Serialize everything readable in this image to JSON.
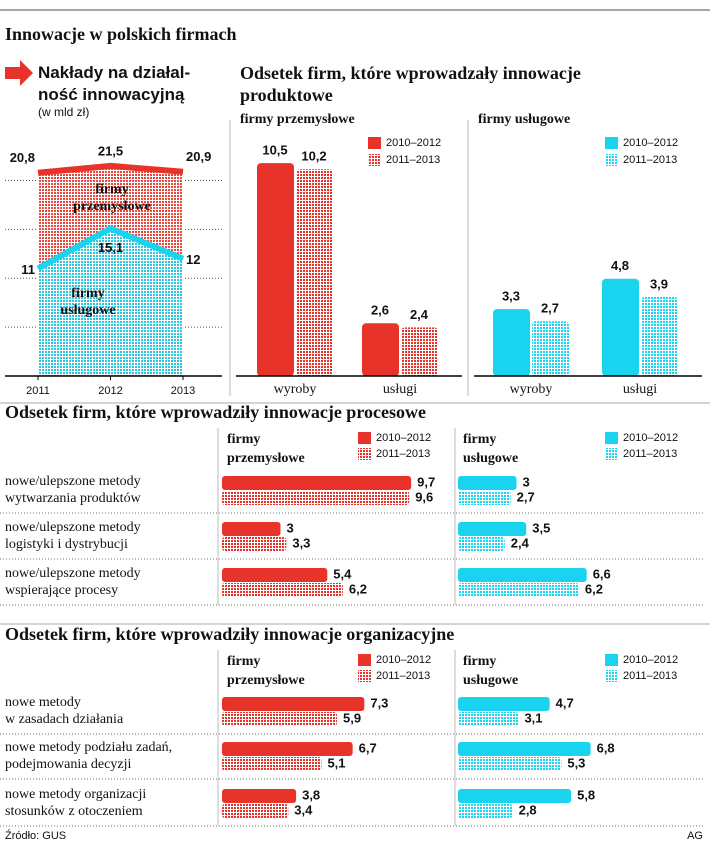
{
  "title": "Innowacje w polskich firmach",
  "source": "Źródło: GUS",
  "credit": "AG",
  "chart_data": [
    {
      "type": "area-line",
      "title": "Nakłady na działal-\nność innowacyjną",
      "subtitle": "(w mld zł)",
      "categories": [
        "2011",
        "2012",
        "2013"
      ],
      "series": [
        {
          "name": "firmy\nprzemysłowe",
          "color": "#e8332a",
          "values": [
            20.8,
            21.5,
            20.9
          ],
          "value_labels": [
            "20,8",
            "21,5",
            "20,9"
          ]
        },
        {
          "name": "firmy\nusługowe",
          "color": "#19d3ef",
          "values": [
            11,
            15.1,
            12
          ],
          "value_labels": [
            "11",
            "15,1",
            "12"
          ]
        }
      ],
      "ylim": [
        0,
        22
      ],
      "yticks": [
        0,
        5,
        10,
        15,
        20
      ],
      "grid": true
    },
    {
      "type": "bar",
      "title": "Odsetek firm, które wprowadzały innowacje\nproduktowe",
      "ylim": [
        0,
        11
      ],
      "panels": [
        {
          "title": "firmy przemysłowe",
          "categories": [
            "wyroby",
            "usługi"
          ],
          "series": [
            {
              "name": "2010–2012",
              "color": "#e8332a",
              "fill": "solid",
              "values": [
                10.5,
                2.6
              ],
              "value_labels": [
                "10,5",
                "2,6"
              ]
            },
            {
              "name": "2011–2013",
              "color": "#e8332a",
              "fill": "dotted",
              "values": [
                10.2,
                2.4
              ],
              "value_labels": [
                "10,2",
                "2,4"
              ]
            }
          ]
        },
        {
          "title": "firmy usługowe",
          "categories": [
            "wyroby",
            "usługi"
          ],
          "series": [
            {
              "name": "2010–2012",
              "color": "#19d3ef",
              "fill": "solid",
              "values": [
                3.3,
                4.8
              ],
              "value_labels": [
                "3,3",
                "4,8"
              ]
            },
            {
              "name": "2011–2013",
              "color": "#19d3ef",
              "fill": "dotted",
              "values": [
                2.7,
                3.9
              ],
              "value_labels": [
                "2,7",
                "3,9"
              ]
            }
          ]
        }
      ]
    },
    {
      "type": "hbar",
      "title": "Odsetek firm, które wprowadziły innowacje procesowe",
      "xlim": [
        0,
        10
      ],
      "categories": [
        "nowe/ulepszone metody\nwytwarzania produktów",
        "nowe/ulepszone metody\nlogistyki i dystrybucji",
        "nowe/ulepszone metody\nwspierające procesy"
      ],
      "panels": [
        {
          "title": "firmy\nprzemysłowe",
          "series": [
            {
              "name": "2010–2012",
              "color": "#e8332a",
              "fill": "solid",
              "values": [
                9.7,
                3,
                5.4
              ],
              "value_labels": [
                "9,7",
                "3",
                "5,4"
              ]
            },
            {
              "name": "2011–2013",
              "color": "#e8332a",
              "fill": "dotted",
              "values": [
                9.6,
                3.3,
                6.2
              ],
              "value_labels": [
                "9,6",
                "3,3",
                "6,2"
              ]
            }
          ]
        },
        {
          "title": "firmy\nusługowe",
          "series": [
            {
              "name": "2010–2012",
              "color": "#19d3ef",
              "fill": "solid",
              "values": [
                3,
                3.5,
                6.6
              ],
              "value_labels": [
                "3",
                "3,5",
                "6,6"
              ]
            },
            {
              "name": "2011–2013",
              "color": "#19d3ef",
              "fill": "dotted",
              "values": [
                2.7,
                2.4,
                6.2
              ],
              "value_labels": [
                "2,7",
                "2,4",
                "6,2"
              ]
            }
          ]
        }
      ]
    },
    {
      "type": "hbar",
      "title": "Odsetek firm, które wprowadziły innowacje organizacyjne",
      "xlim": [
        0,
        10
      ],
      "categories": [
        "nowe metody\nw zasadach działania",
        "nowe metody podziału zadań,\npodejmowania decyzji",
        "nowe metody organizacji\nstosunków z otoczeniem"
      ],
      "panels": [
        {
          "title": "firmy\nprzemysłowe",
          "series": [
            {
              "name": "2010–2012",
              "color": "#e8332a",
              "fill": "solid",
              "values": [
                7.3,
                6.7,
                3.8
              ],
              "value_labels": [
                "7,3",
                "6,7",
                "3,8"
              ]
            },
            {
              "name": "2011–2013",
              "color": "#e8332a",
              "fill": "dotted",
              "values": [
                5.9,
                5.1,
                3.4
              ],
              "value_labels": [
                "5,9",
                "5,1",
                "3,4"
              ]
            }
          ]
        },
        {
          "title": "firmy\nusługowe",
          "series": [
            {
              "name": "2010–2012",
              "color": "#19d3ef",
              "fill": "solid",
              "values": [
                4.7,
                6.8,
                5.8
              ],
              "value_labels": [
                "4,7",
                "6,8",
                "5,8"
              ]
            },
            {
              "name": "2011–2013",
              "color": "#19d3ef",
              "fill": "dotted",
              "values": [
                3.1,
                5.3,
                2.8
              ],
              "value_labels": [
                "3,1",
                "5,3",
                "2,8"
              ]
            }
          ]
        }
      ]
    }
  ]
}
